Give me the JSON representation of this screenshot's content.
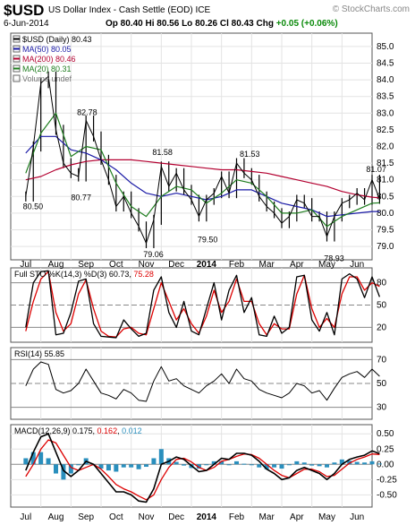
{
  "header": {
    "symbol": "$USD",
    "description": "US Dollar Index - Cash Settle (EOD) ICE",
    "brand": "© StockCharts.com",
    "date": "6-Jun-2014",
    "quote": {
      "open_label": "Op",
      "open": "80.40",
      "high_label": "Hi",
      "high": "80.56",
      "low_label": "Lo",
      "low": "80.26",
      "close_label": "Cl",
      "close": "80.43",
      "change_label": "Chg",
      "change": "+0.05 (+0.06%)"
    }
  },
  "colors": {
    "price": "#000000",
    "ma50": "#1a1aa6",
    "ma200": "#b30030",
    "ma20": "#1e7d1e",
    "stoch_k": "#000000",
    "stoch_d": "#dd0000",
    "rsi": "#000000",
    "macd": "#000000",
    "signal": "#dd0000",
    "histogram": "#2a8fbd",
    "up_text": "#0a8a0a"
  },
  "icons": [
    "box-icon"
  ],
  "chart_data": [
    {
      "type": "line",
      "title": "$USD (Daily) 80.43",
      "months": [
        "Jul",
        "Aug",
        "Sep",
        "Oct",
        "Nov",
        "Dec",
        "2014",
        "Feb",
        "Mar",
        "Apr",
        "May",
        "Jun"
      ],
      "ylim": [
        78.6,
        85.4
      ],
      "yticks": [
        "85.0",
        "84.5",
        "84.0",
        "83.5",
        "83.0",
        "82.5",
        "82.0",
        "81.5",
        "81.0",
        "80.5",
        "80.0",
        "79.5",
        "79.0"
      ],
      "legend": [
        {
          "key": "price",
          "label": "$USD (Daily) 80.43"
        },
        {
          "key": "ma50",
          "label": "MA(50) 80.05"
        },
        {
          "key": "ma200",
          "label": "MA(200) 80.46"
        },
        {
          "key": "ma20",
          "label": "MA(20) 80.31"
        },
        {
          "key": "volume",
          "label": "Volume undef"
        }
      ],
      "annotations": [
        {
          "label": "80.50",
          "x": 0.2,
          "y": 80.5
        },
        {
          "label": "82.78",
          "x": 2.0,
          "y": 82.78
        },
        {
          "label": "80.77",
          "x": 1.8,
          "y": 80.77
        },
        {
          "label": "81.58",
          "x": 4.5,
          "y": 81.58
        },
        {
          "label": "79.06",
          "x": 4.2,
          "y": 79.06
        },
        {
          "label": "79.50",
          "x": 6.0,
          "y": 79.5
        },
        {
          "label": "81.53",
          "x": 7.4,
          "y": 81.53
        },
        {
          "label": "78.93",
          "x": 10.2,
          "y": 78.93
        },
        {
          "label": "81.07",
          "x": 11.6,
          "y": 81.07
        }
      ],
      "series": [
        {
          "name": "$USD (Daily)",
          "key": "price",
          "x": [
            0.0,
            0.25,
            0.5,
            0.75,
            1.0,
            1.25,
            1.5,
            1.75,
            2.0,
            2.25,
            2.5,
            2.75,
            3.0,
            3.25,
            3.5,
            3.75,
            4.0,
            4.25,
            4.5,
            4.75,
            5.0,
            5.25,
            5.5,
            5.75,
            6.0,
            6.25,
            6.5,
            6.75,
            7.0,
            7.25,
            7.5,
            7.75,
            8.0,
            8.25,
            8.5,
            8.75,
            9.0,
            9.25,
            9.5,
            9.75,
            10.0,
            10.25,
            10.5,
            10.75,
            11.0,
            11.25,
            11.5,
            11.75
          ],
          "y": [
            80.5,
            82.0,
            83.9,
            84.1,
            82.5,
            81.5,
            81.2,
            81.1,
            82.78,
            82.3,
            81.6,
            81.0,
            80.2,
            80.5,
            80.0,
            79.6,
            79.1,
            79.8,
            81.4,
            80.8,
            81.2,
            80.7,
            80.4,
            79.9,
            80.4,
            80.6,
            81.1,
            80.6,
            81.5,
            81.2,
            81.0,
            80.5,
            80.2,
            80.0,
            79.7,
            79.9,
            80.4,
            80.3,
            79.9,
            79.9,
            79.3,
            79.9,
            80.3,
            80.4,
            80.6,
            80.4,
            81.0,
            80.43
          ]
        },
        {
          "name": "MA(50)",
          "key": "ma50",
          "x": [
            0.0,
            0.5,
            1.0,
            1.5,
            2.0,
            2.5,
            3.0,
            3.5,
            4.0,
            4.5,
            5.0,
            5.5,
            6.0,
            6.5,
            7.0,
            7.5,
            8.0,
            8.5,
            9.0,
            9.5,
            10.0,
            10.5,
            11.0,
            11.5,
            11.75
          ],
          "y": [
            81.8,
            82.3,
            82.3,
            81.9,
            81.8,
            81.6,
            81.3,
            80.9,
            80.6,
            80.5,
            80.6,
            80.5,
            80.4,
            80.5,
            80.7,
            80.7,
            80.5,
            80.3,
            80.2,
            80.1,
            79.9,
            79.95,
            80.0,
            80.05,
            80.05
          ]
        },
        {
          "name": "MA(200)",
          "key": "ma200",
          "x": [
            0.0,
            0.5,
            1.0,
            1.5,
            2.0,
            2.5,
            3.0,
            3.5,
            4.0,
            4.5,
            5.0,
            5.5,
            6.0,
            6.5,
            7.0,
            7.5,
            8.0,
            8.5,
            9.0,
            9.5,
            10.0,
            10.5,
            11.0,
            11.5,
            11.75
          ],
          "y": [
            81.0,
            81.1,
            81.3,
            81.45,
            81.55,
            81.6,
            81.6,
            81.6,
            81.55,
            81.5,
            81.45,
            81.4,
            81.35,
            81.3,
            81.3,
            81.25,
            81.2,
            81.1,
            81.0,
            80.9,
            80.8,
            80.65,
            80.55,
            80.48,
            80.46
          ]
        },
        {
          "name": "MA(20)",
          "key": "ma20",
          "x": [
            0.0,
            0.5,
            1.0,
            1.5,
            2.0,
            2.5,
            3.0,
            3.5,
            4.0,
            4.5,
            5.0,
            5.5,
            6.0,
            6.5,
            7.0,
            7.5,
            8.0,
            8.5,
            9.0,
            9.5,
            10.0,
            10.5,
            11.0,
            11.5,
            11.75
          ],
          "y": [
            81.2,
            82.4,
            83.0,
            81.7,
            82.0,
            81.9,
            80.9,
            80.2,
            79.9,
            80.5,
            80.8,
            80.7,
            80.3,
            80.6,
            81.0,
            80.9,
            80.5,
            80.0,
            80.0,
            80.1,
            79.6,
            79.9,
            80.1,
            80.3,
            80.31
          ]
        }
      ]
    },
    {
      "type": "line",
      "title": "Full STO %K(14,3) %D(3) 60.73, 75.28",
      "label_prefix": "Full STO %K(14,3) %D(3) ",
      "k_value": "60.73",
      "d_value": "75.28",
      "ylim": [
        0,
        100
      ],
      "yticks": [
        "80",
        "50",
        "20"
      ],
      "levels": [
        80,
        50,
        20
      ],
      "series": [
        {
          "name": "%K",
          "key": "stoch_k",
          "x": [
            0.0,
            0.25,
            0.5,
            0.75,
            1.0,
            1.25,
            1.5,
            1.75,
            2.0,
            2.25,
            2.5,
            2.75,
            3.0,
            3.25,
            3.5,
            3.75,
            4.0,
            4.25,
            4.5,
            4.75,
            5.0,
            5.25,
            5.5,
            5.75,
            6.0,
            6.25,
            6.5,
            6.75,
            7.0,
            7.25,
            7.5,
            7.75,
            8.0,
            8.25,
            8.5,
            8.75,
            9.0,
            9.25,
            9.5,
            9.75,
            10.0,
            10.25,
            10.5,
            10.75,
            11.0,
            11.25,
            11.5,
            11.75
          ],
          "y": [
            20,
            80,
            95,
            96,
            10,
            12,
            40,
            82,
            85,
            25,
            8,
            7,
            6,
            30,
            18,
            8,
            12,
            70,
            88,
            40,
            20,
            55,
            15,
            10,
            45,
            80,
            30,
            70,
            90,
            40,
            60,
            10,
            8,
            35,
            12,
            20,
            88,
            90,
            30,
            15,
            40,
            10,
            85,
            92,
            85,
            60,
            88,
            61
          ]
        },
        {
          "name": "%D",
          "key": "stoch_d",
          "x": [
            0.0,
            0.25,
            0.5,
            0.75,
            1.0,
            1.25,
            1.5,
            1.75,
            2.0,
            2.25,
            2.5,
            2.75,
            3.0,
            3.25,
            3.5,
            3.75,
            4.0,
            4.25,
            4.5,
            4.75,
            5.0,
            5.25,
            5.5,
            5.75,
            6.0,
            6.25,
            6.5,
            6.75,
            7.0,
            7.25,
            7.5,
            7.75,
            8.0,
            8.25,
            8.5,
            8.75,
            9.0,
            9.25,
            9.5,
            9.75,
            10.0,
            10.25,
            10.5,
            10.75,
            11.0,
            11.25,
            11.5,
            11.75
          ],
          "y": [
            15,
            55,
            85,
            95,
            40,
            15,
            25,
            65,
            84,
            45,
            15,
            8,
            7,
            18,
            20,
            12,
            10,
            45,
            80,
            55,
            30,
            45,
            25,
            12,
            35,
            70,
            40,
            55,
            85,
            55,
            55,
            25,
            10,
            25,
            18,
            18,
            65,
            90,
            45,
            20,
            32,
            20,
            65,
            88,
            88,
            70,
            80,
            75
          ]
        }
      ]
    },
    {
      "type": "line",
      "title": "RSI(14) 55.85",
      "label_prefix": "RSI(14) ",
      "value": "55.85",
      "ylim": [
        20,
        80
      ],
      "yticks": [
        "70",
        "50",
        "30"
      ],
      "levels": [
        70,
        50,
        30
      ],
      "series": [
        {
          "name": "RSI(14)",
          "key": "rsi",
          "x": [
            0.0,
            0.25,
            0.5,
            0.75,
            1.0,
            1.25,
            1.5,
            1.75,
            2.0,
            2.25,
            2.5,
            2.75,
            3.0,
            3.25,
            3.5,
            3.75,
            4.0,
            4.25,
            4.5,
            4.75,
            5.0,
            5.25,
            5.5,
            5.75,
            6.0,
            6.25,
            6.5,
            6.75,
            7.0,
            7.25,
            7.5,
            7.75,
            8.0,
            8.25,
            8.5,
            8.75,
            9.0,
            9.25,
            9.5,
            9.75,
            10.0,
            10.25,
            10.5,
            10.75,
            11.0,
            11.25,
            11.5,
            11.75
          ],
          "y": [
            48,
            62,
            68,
            66,
            45,
            42,
            44,
            50,
            62,
            52,
            42,
            40,
            37,
            45,
            42,
            36,
            35,
            52,
            64,
            52,
            54,
            48,
            45,
            42,
            48,
            52,
            58,
            50,
            62,
            54,
            52,
            45,
            42,
            40,
            38,
            42,
            50,
            48,
            42,
            44,
            36,
            46,
            55,
            58,
            60,
            55,
            62,
            56
          ]
        }
      ]
    },
    {
      "type": "line",
      "title": "MACD(12,26,9) 0.175, 0.162, 0.012",
      "label_prefix": "MACD(12,26,9) ",
      "macd_value": "0.175",
      "signal_value": "0.162",
      "hist_value": "0.012",
      "ylim": [
        -0.7,
        0.65
      ],
      "yticks": [
        "0.50",
        "0.25",
        "0.00",
        "-0.25",
        "-0.50"
      ],
      "series": [
        {
          "name": "MACD",
          "key": "macd",
          "x": [
            0.0,
            0.25,
            0.5,
            0.75,
            1.0,
            1.25,
            1.5,
            1.75,
            2.0,
            2.25,
            2.5,
            2.75,
            3.0,
            3.25,
            3.5,
            3.75,
            4.0,
            4.25,
            4.5,
            4.75,
            5.0,
            5.25,
            5.5,
            5.75,
            6.0,
            6.25,
            6.5,
            6.75,
            7.0,
            7.25,
            7.5,
            7.75,
            8.0,
            8.25,
            8.5,
            8.75,
            9.0,
            9.25,
            9.5,
            9.75,
            10.0,
            10.25,
            10.5,
            10.75,
            11.0,
            11.25,
            11.5,
            11.75
          ],
          "y": [
            -0.1,
            0.2,
            0.45,
            0.5,
            0.2,
            -0.1,
            -0.2,
            -0.1,
            0.05,
            0.0,
            -0.15,
            -0.3,
            -0.45,
            -0.45,
            -0.5,
            -0.6,
            -0.62,
            -0.4,
            0.0,
            0.05,
            0.12,
            0.08,
            -0.02,
            -0.12,
            -0.1,
            0.0,
            0.1,
            0.08,
            0.18,
            0.18,
            0.15,
            0.05,
            -0.08,
            -0.15,
            -0.25,
            -0.22,
            -0.1,
            -0.05,
            -0.1,
            -0.15,
            -0.25,
            -0.15,
            0.0,
            0.08,
            0.12,
            0.15,
            0.22,
            0.175
          ]
        },
        {
          "name": "Signal",
          "key": "signal",
          "x": [
            0.0,
            0.25,
            0.5,
            0.75,
            1.0,
            1.25,
            1.5,
            1.75,
            2.0,
            2.25,
            2.5,
            2.75,
            3.0,
            3.25,
            3.5,
            3.75,
            4.0,
            4.25,
            4.5,
            4.75,
            5.0,
            5.25,
            5.5,
            5.75,
            6.0,
            6.25,
            6.5,
            6.75,
            7.0,
            7.25,
            7.5,
            7.75,
            8.0,
            8.25,
            8.5,
            8.75,
            9.0,
            9.25,
            9.5,
            9.75,
            10.0,
            10.25,
            10.5,
            10.75,
            11.0,
            11.25,
            11.5,
            11.75
          ],
          "y": [
            -0.2,
            0.0,
            0.25,
            0.4,
            0.35,
            0.15,
            -0.05,
            -0.1,
            -0.05,
            0.0,
            -0.08,
            -0.2,
            -0.33,
            -0.4,
            -0.45,
            -0.52,
            -0.58,
            -0.5,
            -0.25,
            -0.05,
            0.08,
            0.1,
            0.04,
            -0.05,
            -0.1,
            -0.05,
            0.05,
            0.08,
            0.13,
            0.17,
            0.16,
            0.1,
            0.0,
            -0.1,
            -0.18,
            -0.22,
            -0.15,
            -0.08,
            -0.08,
            -0.12,
            -0.2,
            -0.18,
            -0.08,
            0.02,
            0.08,
            0.12,
            0.17,
            0.162
          ]
        }
      ]
    }
  ]
}
